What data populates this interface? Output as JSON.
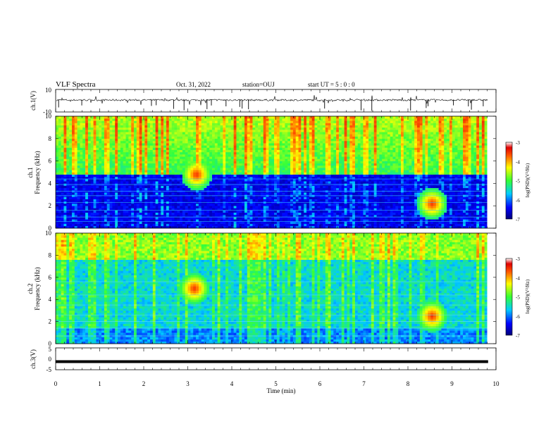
{
  "header": {
    "title": "VLF Spectra",
    "date": "Oct. 31, 2022",
    "station": "station=OUJ",
    "start": "start  UT =  5 : 0  : 0"
  },
  "chart_data": [
    {
      "type": "line",
      "panel": "ch1-waveform",
      "ylabel": "ch.1(V)",
      "ylim": [
        -10,
        10
      ],
      "yticks": [
        "10",
        "-10"
      ],
      "xlim": [
        0,
        10
      ],
      "series": [
        {
          "values_mean": 0.6
        }
      ]
    },
    {
      "type": "heatmap",
      "panel": "ch1-spectrogram",
      "ylabel": "ch.1\nFrequency (kHz)",
      "ylabel_line1": "ch.1",
      "ylabel_line2": "Frequency (kHz)",
      "ylim": [
        0,
        10
      ],
      "yticks": [
        "0",
        "2",
        "4",
        "6",
        "8",
        "10"
      ],
      "xlim": [
        0,
        9.8
      ],
      "colorbar": {
        "label": "log(PSD)(V²/Hz)",
        "range": [
          -7,
          -3
        ],
        "ticks": [
          "-3",
          "-4",
          "-5",
          "-6",
          "-7"
        ]
      },
      "background_cutoff_khz": 4.8,
      "features": [
        {
          "t_min": 3.2,
          "f_khz": 4.8,
          "note": "emission burst"
        },
        {
          "t_min": 8.55,
          "f_khz": 2.2,
          "note": "dispersed tail"
        }
      ]
    },
    {
      "type": "heatmap",
      "panel": "ch2-spectrogram",
      "ylabel": "ch.2\nFrequency (kHz)",
      "ylabel_line1": "ch.2",
      "ylabel_line2": "Frequency (kHz)",
      "ylim": [
        0,
        10
      ],
      "yticks": [
        "0",
        "2",
        "4",
        "6",
        "8",
        "10"
      ],
      "xlim": [
        0,
        9.8
      ],
      "colorbar": {
        "label": "log(PSD)(V²/Hz)",
        "range": [
          -7,
          -3
        ],
        "ticks": [
          "-3",
          "-4",
          "-5",
          "-6",
          "-7"
        ]
      },
      "features": [
        {
          "t_min": 3.15,
          "f_khz": 5.0,
          "note": "emission burst"
        },
        {
          "t_min": 8.55,
          "f_khz": 2.5,
          "note": "dispersed tail"
        }
      ]
    },
    {
      "type": "line",
      "panel": "ch3-waveform",
      "ylabel": "ch.3(V)",
      "ylim": [
        -5,
        5
      ],
      "yticks": [
        "5",
        "0",
        "-5"
      ],
      "xlim": [
        0,
        10
      ],
      "xlabel": "Time  (min)",
      "xticks": [
        "0",
        "1",
        "2",
        "3",
        "4",
        "5",
        "6",
        "7",
        "8",
        "9",
        "10"
      ],
      "series": [
        {
          "values_mean": -1.3
        }
      ]
    }
  ]
}
